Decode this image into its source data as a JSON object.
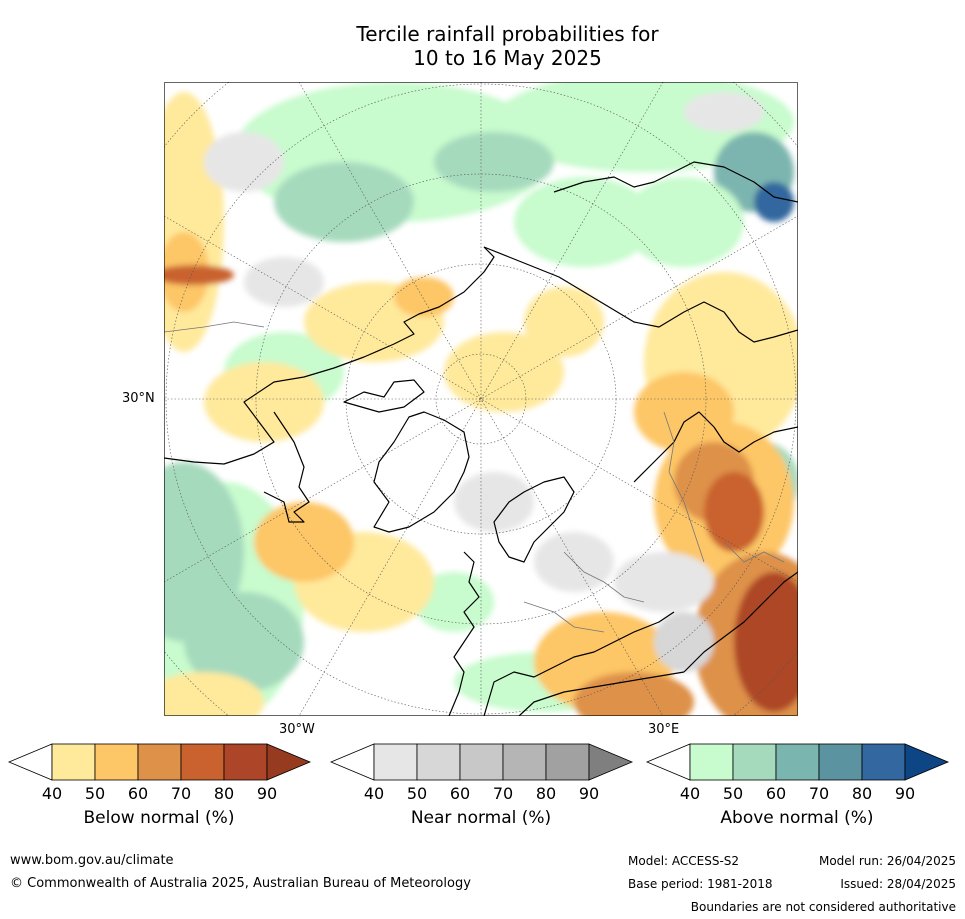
{
  "title": {
    "line1": "Tercile rainfall probabilities for",
    "line2": "10 to 16 May 2025"
  },
  "map": {
    "lat_label": "30°N",
    "lon_labels": {
      "west": "30°W",
      "east": "30°E"
    }
  },
  "colorbars": [
    {
      "id": "below",
      "label": "Below normal (%)",
      "ticks": [
        "40",
        "50",
        "60",
        "70",
        "80",
        "90"
      ],
      "colors": [
        "#ffffff",
        "#ffe99b",
        "#fdc666",
        "#de9148",
        "#c9622f",
        "#ad4628",
        "#963a20"
      ]
    },
    {
      "id": "near",
      "label": "Near normal (%)",
      "ticks": [
        "40",
        "50",
        "60",
        "70",
        "80",
        "90"
      ],
      "colors": [
        "#ffffff",
        "#e6e6e6",
        "#d7d7d7",
        "#c8c8c8",
        "#b5b5b5",
        "#a1a1a1",
        "#7f7f7f"
      ]
    },
    {
      "id": "above",
      "label": "Above normal (%)",
      "ticks": [
        "40",
        "50",
        "60",
        "70",
        "80",
        "90"
      ],
      "colors": [
        "#ffffff",
        "#c8fbcd",
        "#a6dabd",
        "#7bb5af",
        "#5c93a0",
        "#33679f",
        "#0e4584"
      ]
    }
  ],
  "footer": {
    "website": "www.bom.gov.au/climate",
    "copyright": "© Commonwealth of Australia 2025, Australian Bureau of Meteorology",
    "model": "Model: ACCESS-S2",
    "model_run": "Model run: 26/04/2025",
    "base_period": "Base period: 1981-2018",
    "issued": "Issued: 28/04/2025",
    "disclaimer": "Boundaries are not considered authoritative"
  }
}
